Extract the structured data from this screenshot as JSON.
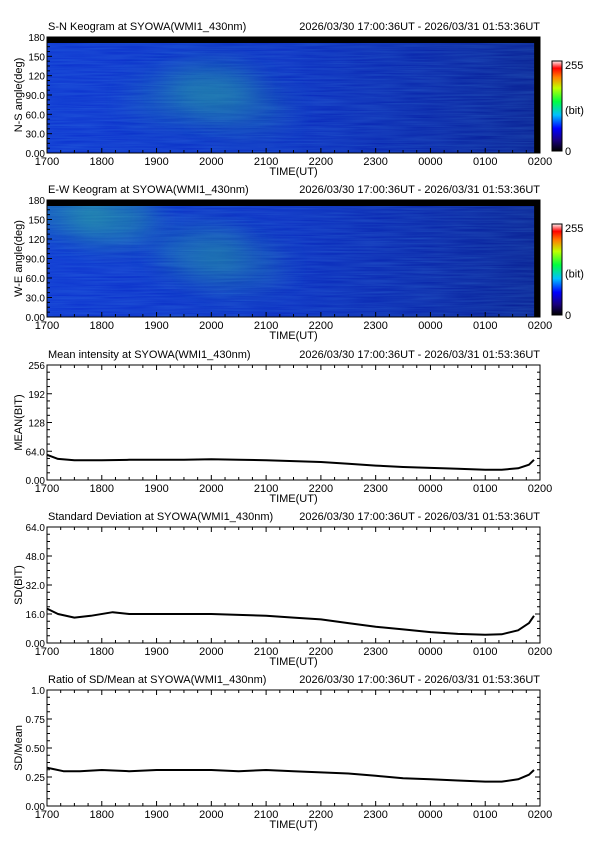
{
  "time_axis": {
    "ticks": [
      "1700",
      "1800",
      "1900",
      "2000",
      "2100",
      "2200",
      "2300",
      "0000",
      "0100",
      "0200"
    ],
    "label": "TIME(UT)",
    "range_hours": [
      17.0,
      26.0
    ],
    "data_end_hours": 25.893
  },
  "colorbar": {
    "max": "255",
    "unit": "(bit)",
    "min": "0"
  },
  "chart_data": [
    {
      "type": "heatmap",
      "title": "S-N Keogram at SYOWA(WMI1_430nm)",
      "time_range": "2026/03/30 17:00:36UT - 2026/03/31 01:53:36UT",
      "xlabel": "TIME(UT)",
      "ylabel": "N-S angle(deg)",
      "yticks": [
        "0.00",
        "30.0",
        "60.0",
        "90.0",
        "120",
        "150",
        "180"
      ],
      "ylim": [
        0,
        180
      ],
      "color_range": [
        0,
        255
      ],
      "blobs": [
        {
          "t": 20.0,
          "angle": 100,
          "intensity": 0.32
        },
        {
          "t": 19.3,
          "angle": 85,
          "intensity": 0.18
        },
        {
          "t": 20.6,
          "angle": 70,
          "intensity": 0.2
        }
      ]
    },
    {
      "type": "heatmap",
      "title": "E-W Keogram at SYOWA(WMI1_430nm)",
      "time_range": "2026/03/30 17:00:36UT - 2026/03/31 01:53:36UT",
      "xlabel": "TIME(UT)",
      "ylabel": "W-E angle(deg)",
      "yticks": [
        "0.00",
        "30.0",
        "60.0",
        "90.0",
        "120",
        "150",
        "180"
      ],
      "ylim": [
        0,
        180
      ],
      "color_range": [
        0,
        255
      ],
      "blobs": [
        {
          "t": 18.2,
          "angle": 150,
          "intensity": 0.42
        },
        {
          "t": 17.3,
          "angle": 165,
          "intensity": 0.3
        },
        {
          "t": 19.8,
          "angle": 100,
          "intensity": 0.3
        },
        {
          "t": 20.5,
          "angle": 80,
          "intensity": 0.22
        }
      ]
    },
    {
      "type": "line",
      "title": "Mean intensity at SYOWA(WMI1_430nm)",
      "time_range": "2026/03/30 17:00:36UT - 2026/03/31 01:53:36UT",
      "xlabel": "TIME(UT)",
      "ylabel": "MEAN(BIT)",
      "yticks": [
        "0.00",
        "64.0",
        "128",
        "192",
        "256"
      ],
      "ylim": [
        0,
        256
      ],
      "series": [
        {
          "x": [
            17.0,
            17.2,
            17.5,
            18.0,
            18.5,
            19.0,
            19.5,
            20.0,
            20.5,
            21.0,
            21.5,
            22.0,
            22.5,
            23.0,
            23.5,
            24.0,
            24.5,
            25.0,
            25.3,
            25.6,
            25.8,
            25.89
          ],
          "y": [
            56,
            47,
            44,
            44,
            45,
            45,
            45,
            46,
            45,
            44,
            42,
            40,
            36,
            32,
            29,
            27,
            25,
            23,
            23,
            26,
            34,
            45
          ]
        }
      ]
    },
    {
      "type": "line",
      "title": "Standard Deviation at SYOWA(WMI1_430nm)",
      "time_range": "2026/03/30 17:00:36UT - 2026/03/31 01:53:36UT",
      "xlabel": "TIME(UT)",
      "ylabel": "SD(BIT)",
      "yticks": [
        "0.00",
        "16.0",
        "32.0",
        "48.0",
        "64.0"
      ],
      "ylim": [
        0,
        64
      ],
      "series": [
        {
          "x": [
            17.0,
            17.2,
            17.5,
            17.8,
            18.2,
            18.5,
            19.0,
            19.5,
            20.0,
            20.5,
            21.0,
            21.5,
            22.0,
            22.5,
            23.0,
            23.5,
            24.0,
            24.5,
            25.0,
            25.3,
            25.6,
            25.8,
            25.89
          ],
          "y": [
            19,
            16,
            14,
            15,
            17,
            16,
            16,
            16,
            16,
            15.5,
            15,
            14,
            13,
            11,
            9,
            7.5,
            6,
            5,
            4.5,
            4.8,
            7,
            11,
            15
          ]
        }
      ]
    },
    {
      "type": "line",
      "title": "Ratio of SD/Mean at SYOWA(WMI1_430nm)",
      "time_range": "2026/03/30 17:00:36UT - 2026/03/31 01:53:36UT",
      "xlabel": "TIME(UT)",
      "ylabel": "SD/Mean",
      "yticks": [
        "0.00",
        "0.25",
        "0.50",
        "0.75",
        "1.0"
      ],
      "ylim": [
        0,
        1
      ],
      "series": [
        {
          "x": [
            17.0,
            17.1,
            17.3,
            17.6,
            18.0,
            18.5,
            19.0,
            19.5,
            20.0,
            20.5,
            21.0,
            21.5,
            22.0,
            22.5,
            23.0,
            23.5,
            24.0,
            24.5,
            25.0,
            25.3,
            25.6,
            25.8,
            25.89
          ],
          "y": [
            0.33,
            0.32,
            0.3,
            0.3,
            0.31,
            0.3,
            0.31,
            0.31,
            0.31,
            0.3,
            0.31,
            0.3,
            0.29,
            0.28,
            0.26,
            0.24,
            0.23,
            0.22,
            0.21,
            0.21,
            0.23,
            0.27,
            0.31
          ]
        }
      ]
    }
  ]
}
